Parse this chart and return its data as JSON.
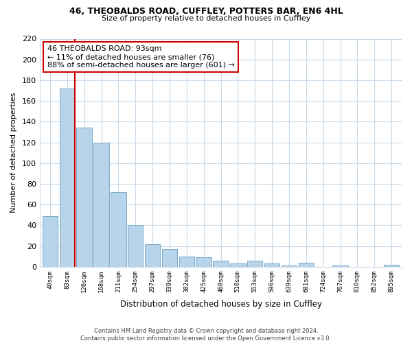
{
  "title": "46, THEOBALDS ROAD, CUFFLEY, POTTERS BAR, EN6 4HL",
  "subtitle": "Size of property relative to detached houses in Cuffley",
  "xlabel": "Distribution of detached houses by size in Cuffley",
  "ylabel": "Number of detached properties",
  "categories": [
    "40sqm",
    "83sqm",
    "126sqm",
    "168sqm",
    "211sqm",
    "254sqm",
    "297sqm",
    "339sqm",
    "382sqm",
    "425sqm",
    "468sqm",
    "510sqm",
    "553sqm",
    "596sqm",
    "639sqm",
    "681sqm",
    "724sqm",
    "767sqm",
    "810sqm",
    "852sqm",
    "895sqm"
  ],
  "values": [
    49,
    172,
    134,
    120,
    72,
    40,
    22,
    17,
    10,
    9,
    6,
    3,
    6,
    3,
    1,
    4,
    0,
    1,
    0,
    0,
    2
  ],
  "bar_color": "#b8d4ea",
  "bar_edge_color": "#7aaacb",
  "vline_color": "#cc0000",
  "annotation_text": "46 THEOBALDS ROAD: 93sqm\n← 11% of detached houses are smaller (76)\n88% of semi-detached houses are larger (601) →",
  "annotation_box_edge": "#cc0000",
  "ylim": [
    0,
    220
  ],
  "yticks": [
    0,
    20,
    40,
    60,
    80,
    100,
    120,
    140,
    160,
    180,
    200,
    220
  ],
  "footer": "Contains HM Land Registry data © Crown copyright and database right 2024.\nContains public sector information licensed under the Open Government Licence v3.0.",
  "bg_color": "#ffffff",
  "grid_color": "#c8d8e8"
}
